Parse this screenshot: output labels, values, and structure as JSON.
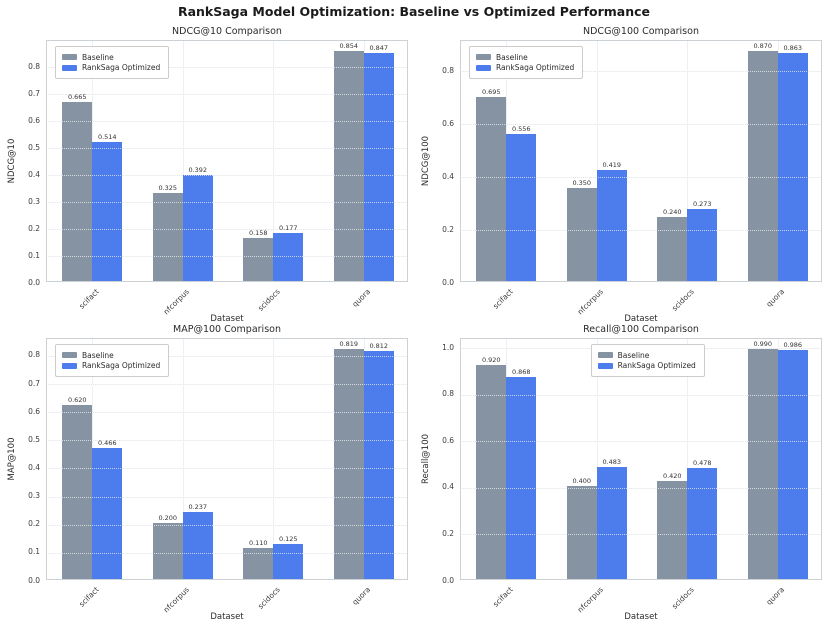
{
  "figure": {
    "title": "RankSaga Model Optimization: Baseline vs Optimized Performance"
  },
  "colors": {
    "baseline": "#8593A2",
    "optimized": "#4D7DED",
    "grid": "#E6E9ED",
    "spine": "#CCD1D6"
  },
  "legend": {
    "items": [
      {
        "label": "Baseline",
        "color_key": "baseline"
      },
      {
        "label": "RankSaga Optimized",
        "color_key": "optimized"
      }
    ]
  },
  "chart_data": [
    {
      "type": "bar",
      "title": "NDCG@10 Comparison",
      "xlabel": "Dataset",
      "ylabel": "NDCG@10",
      "categories": [
        "scifact",
        "nfcorpus",
        "scidocs",
        "quora"
      ],
      "series": [
        {
          "name": "Baseline",
          "values": [
            0.665,
            0.325,
            0.158,
            0.854
          ]
        },
        {
          "name": "RankSaga Optimized",
          "values": [
            0.514,
            0.392,
            0.177,
            0.847
          ]
        }
      ],
      "ylim": [
        0,
        0.897
      ],
      "yticks": [
        0.0,
        0.1,
        0.2,
        0.3,
        0.4,
        0.5,
        0.6,
        0.7,
        0.8
      ],
      "grid": true,
      "legend_position": "upper-left",
      "value_label_decimals": 3
    },
    {
      "type": "bar",
      "title": "NDCG@100 Comparison",
      "xlabel": "Dataset",
      "ylabel": "NDCG@100",
      "categories": [
        "scifact",
        "nfcorpus",
        "scidocs",
        "quora"
      ],
      "series": [
        {
          "name": "Baseline",
          "values": [
            0.695,
            0.35,
            0.24,
            0.87
          ]
        },
        {
          "name": "RankSaga Optimized",
          "values": [
            0.556,
            0.419,
            0.273,
            0.863
          ]
        }
      ],
      "ylim": [
        0,
        0.914
      ],
      "yticks": [
        0.0,
        0.2,
        0.4,
        0.6,
        0.8
      ],
      "grid": true,
      "legend_position": "upper-left",
      "value_label_decimals": 3
    },
    {
      "type": "bar",
      "title": "MAP@100 Comparison",
      "xlabel": "Dataset",
      "ylabel": "MAP@100",
      "categories": [
        "scifact",
        "nfcorpus",
        "scidocs",
        "quora"
      ],
      "series": [
        {
          "name": "Baseline",
          "values": [
            0.62,
            0.2,
            0.11,
            0.819
          ]
        },
        {
          "name": "RankSaga Optimized",
          "values": [
            0.466,
            0.237,
            0.125,
            0.812
          ]
        }
      ],
      "ylim": [
        0,
        0.86
      ],
      "yticks": [
        0.0,
        0.1,
        0.2,
        0.3,
        0.4,
        0.5,
        0.6,
        0.7,
        0.8
      ],
      "grid": true,
      "legend_position": "upper-left",
      "value_label_decimals": 3
    },
    {
      "type": "bar",
      "title": "Recall@100 Comparison",
      "xlabel": "Dataset",
      "ylabel": "Recall@100",
      "categories": [
        "scifact",
        "nfcorpus",
        "scidocs",
        "quora"
      ],
      "series": [
        {
          "name": "Baseline",
          "values": [
            0.92,
            0.4,
            0.42,
            0.99
          ]
        },
        {
          "name": "RankSaga Optimized",
          "values": [
            0.868,
            0.483,
            0.478,
            0.986
          ]
        }
      ],
      "ylim": [
        0,
        1.04
      ],
      "yticks": [
        0.0,
        0.2,
        0.4,
        0.6,
        0.8,
        1.0
      ],
      "grid": true,
      "legend_position": "upper-center",
      "value_label_decimals": 3
    }
  ]
}
